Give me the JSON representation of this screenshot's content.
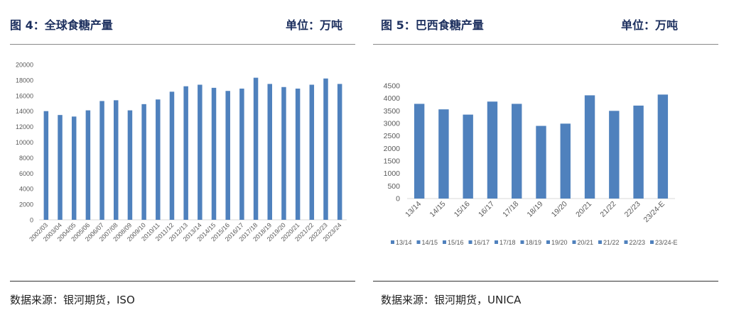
{
  "left": {
    "title": "图 4：全球食糖产量",
    "unit": "单位：万吨",
    "source": "数据来源：银河期货，ISO"
  },
  "right": {
    "title": "图 5：巴西食糖产量",
    "unit": "单位：万吨",
    "source": "数据来源：银河期货，UNICA"
  },
  "colors": {
    "bar": "#4f81bd"
  },
  "chart_data": [
    {
      "type": "bar",
      "title": "全球食糖产量",
      "ylabel": "万吨",
      "ylim": [
        0,
        20000
      ],
      "yticks": [
        0,
        2000,
        4000,
        6000,
        8000,
        10000,
        12000,
        14000,
        16000,
        18000,
        20000
      ],
      "categories": [
        "2002/03",
        "2003/04",
        "2004/05",
        "2005/06",
        "2006/07",
        "2007/08",
        "2008/09",
        "2009/10",
        "2010/11",
        "2011/12",
        "2012/13",
        "2013/14",
        "2014/15",
        "2015/16",
        "2016/17",
        "2017/18",
        "2018/19",
        "2019/20",
        "2020/21",
        "2021/22",
        "2022/23",
        "2023/24"
      ],
      "values": [
        14000,
        13500,
        13300,
        14100,
        15300,
        15400,
        14100,
        14900,
        15500,
        16500,
        17200,
        17400,
        17000,
        16600,
        16900,
        18300,
        17500,
        17100,
        16900,
        17400,
        18200,
        17500
      ],
      "legend": "none"
    },
    {
      "type": "bar",
      "title": "巴西食糖产量",
      "ylabel": "万吨",
      "ylim": [
        0,
        4500
      ],
      "yticks": [
        0,
        500,
        1000,
        1500,
        2000,
        2500,
        3000,
        3500,
        4000,
        4500
      ],
      "categories": [
        "13/14",
        "14/15",
        "15/16",
        "16/17",
        "17/18",
        "18/19",
        "19/20",
        "20/21",
        "21/22",
        "22/23",
        "23/24-E"
      ],
      "values": [
        3780,
        3560,
        3350,
        3870,
        3780,
        2900,
        2990,
        4120,
        3500,
        3710,
        4150
      ],
      "legend": "bottom"
    }
  ]
}
